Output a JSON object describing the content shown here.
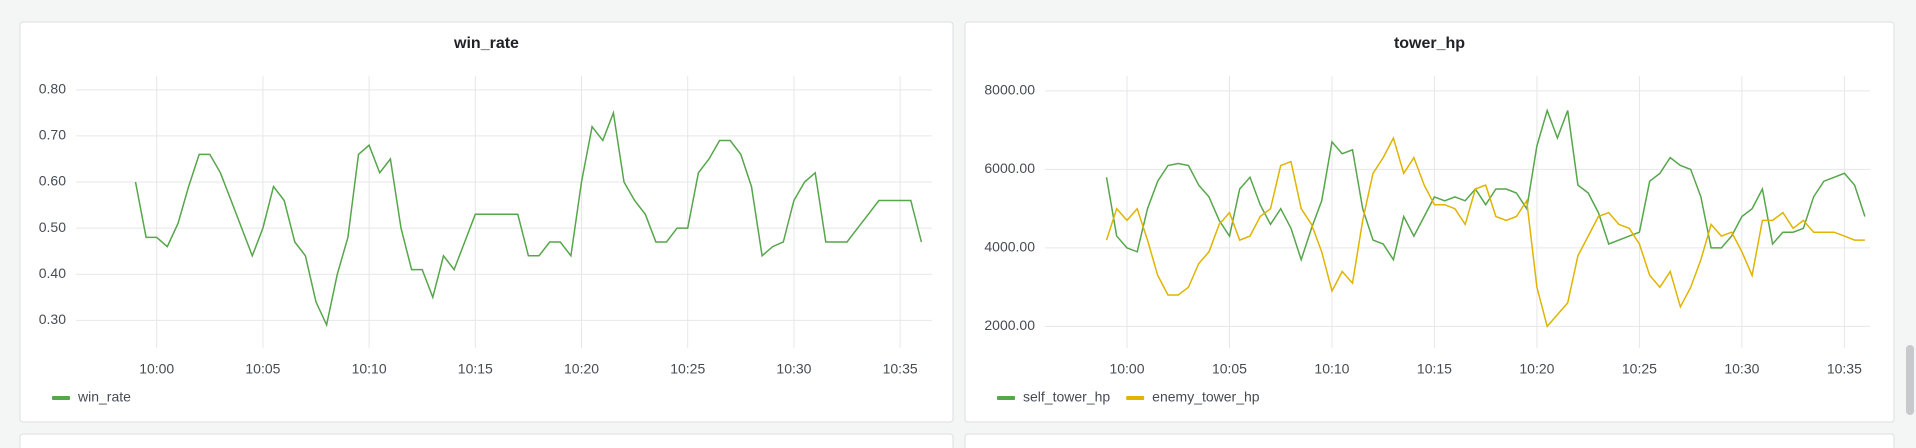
{
  "chart_data": [
    {
      "type": "line",
      "title": "win_rate",
      "x": [
        "09:59:00",
        "09:59:30",
        "10:00:00",
        "10:00:30",
        "10:01:00",
        "10:01:30",
        "10:02:00",
        "10:02:30",
        "10:03:00",
        "10:03:30",
        "10:04:00",
        "10:04:30",
        "10:05:00",
        "10:05:30",
        "10:06:00",
        "10:06:30",
        "10:07:00",
        "10:07:30",
        "10:08:00",
        "10:08:30",
        "10:09:00",
        "10:09:30",
        "10:10:00",
        "10:10:30",
        "10:11:00",
        "10:11:30",
        "10:12:00",
        "10:12:30",
        "10:13:00",
        "10:13:30",
        "10:14:00",
        "10:14:30",
        "10:15:00",
        "10:15:30",
        "10:16:00",
        "10:16:30",
        "10:17:00",
        "10:17:30",
        "10:18:00",
        "10:18:30",
        "10:19:00",
        "10:19:30",
        "10:20:00",
        "10:20:30",
        "10:21:00",
        "10:21:30",
        "10:22:00",
        "10:22:30",
        "10:23:00",
        "10:23:30",
        "10:24:00",
        "10:24:30",
        "10:25:00",
        "10:25:30",
        "10:26:00",
        "10:26:30",
        "10:27:00",
        "10:27:30",
        "10:28:00",
        "10:28:30",
        "10:29:00",
        "10:29:30",
        "10:30:00",
        "10:30:30",
        "10:31:00",
        "10:31:30",
        "10:32:00",
        "10:32:30",
        "10:33:00",
        "10:33:30",
        "10:34:00",
        "10:34:30",
        "10:35:00",
        "10:35:30",
        "10:36:00"
      ],
      "series": [
        {
          "name": "win_rate",
          "color": "#56a64b",
          "values": [
            0.6,
            0.48,
            0.48,
            0.46,
            0.51,
            0.59,
            0.66,
            0.66,
            0.62,
            0.56,
            0.5,
            0.44,
            0.5,
            0.59,
            0.56,
            0.47,
            0.44,
            0.34,
            0.29,
            0.4,
            0.48,
            0.66,
            0.68,
            0.62,
            0.65,
            0.5,
            0.41,
            0.41,
            0.35,
            0.44,
            0.41,
            0.47,
            0.53,
            0.53,
            0.53,
            0.53,
            0.53,
            0.44,
            0.44,
            0.47,
            0.47,
            0.44,
            0.6,
            0.72,
            0.69,
            0.75,
            0.6,
            0.56,
            0.53,
            0.47,
            0.47,
            0.5,
            0.5,
            0.62,
            0.65,
            0.69,
            0.69,
            0.66,
            0.59,
            0.44,
            0.46,
            0.47,
            0.56,
            0.6,
            0.62,
            0.47,
            0.47,
            0.47,
            0.5,
            0.53,
            0.56,
            0.56,
            0.56,
            0.56,
            0.47
          ]
        }
      ],
      "xlim": [
        "09:56:12",
        "10:36:30"
      ],
      "xticks": [
        "10:00",
        "10:05",
        "10:10",
        "10:15",
        "10:20",
        "10:25",
        "10:30",
        "10:35"
      ],
      "ylim": [
        0.24,
        0.83
      ],
      "yticks": [
        {
          "value": 0.3,
          "label": "0.30"
        },
        {
          "value": 0.4,
          "label": "0.40"
        },
        {
          "value": 0.5,
          "label": "0.50"
        },
        {
          "value": 0.6,
          "label": "0.60"
        },
        {
          "value": 0.7,
          "label": "0.70"
        },
        {
          "value": 0.8,
          "label": "0.80"
        }
      ],
      "grid": true,
      "legend": "bottom-left"
    },
    {
      "type": "line",
      "title": "tower_hp",
      "x": [
        "09:59:00",
        "09:59:30",
        "10:00:00",
        "10:00:30",
        "10:01:00",
        "10:01:30",
        "10:02:00",
        "10:02:30",
        "10:03:00",
        "10:03:30",
        "10:04:00",
        "10:04:30",
        "10:05:00",
        "10:05:30",
        "10:06:00",
        "10:06:30",
        "10:07:00",
        "10:07:30",
        "10:08:00",
        "10:08:30",
        "10:09:00",
        "10:09:30",
        "10:10:00",
        "10:10:30",
        "10:11:00",
        "10:11:30",
        "10:12:00",
        "10:12:30",
        "10:13:00",
        "10:13:30",
        "10:14:00",
        "10:14:30",
        "10:15:00",
        "10:15:30",
        "10:16:00",
        "10:16:30",
        "10:17:00",
        "10:17:30",
        "10:18:00",
        "10:18:30",
        "10:19:00",
        "10:19:30",
        "10:20:00",
        "10:20:30",
        "10:21:00",
        "10:21:30",
        "10:22:00",
        "10:22:30",
        "10:23:00",
        "10:23:30",
        "10:24:00",
        "10:24:30",
        "10:25:00",
        "10:25:30",
        "10:26:00",
        "10:26:30",
        "10:27:00",
        "10:27:30",
        "10:28:00",
        "10:28:30",
        "10:29:00",
        "10:29:30",
        "10:30:00",
        "10:30:30",
        "10:31:00",
        "10:31:30",
        "10:32:00",
        "10:32:30",
        "10:33:00",
        "10:33:30",
        "10:34:00",
        "10:34:30",
        "10:35:00",
        "10:35:30",
        "10:36:00"
      ],
      "series": [
        {
          "name": "self_tower_hp",
          "color": "#56a64b",
          "values": [
            5800,
            4300,
            4000,
            3900,
            5000,
            5700,
            6100,
            6150,
            6100,
            5600,
            5300,
            4700,
            4300,
            5500,
            5800,
            5100,
            4600,
            5000,
            4500,
            3700,
            4500,
            5200,
            6700,
            6400,
            6500,
            5000,
            4200,
            4100,
            3700,
            4800,
            4300,
            4800,
            5300,
            5200,
            5300,
            5200,
            5500,
            5100,
            5500,
            5500,
            5400,
            5000,
            6600,
            7500,
            6800,
            7500,
            5600,
            5400,
            4900,
            4100,
            4200,
            4300,
            4400,
            5700,
            5900,
            6300,
            6100,
            6000,
            5300,
            4000,
            4000,
            4300,
            4800,
            5000,
            5500,
            4100,
            4400,
            4400,
            4500,
            5300,
            5700,
            5800,
            5900,
            5600,
            4800
          ]
        },
        {
          "name": "enemy_tower_hp",
          "color": "#e0b400",
          "values": [
            4200,
            5000,
            4700,
            5000,
            4200,
            3300,
            2800,
            2800,
            3000,
            3600,
            3900,
            4600,
            4900,
            4200,
            4300,
            4800,
            5000,
            6100,
            6200,
            5000,
            4600,
            3900,
            2900,
            3400,
            3100,
            4700,
            5900,
            6300,
            6800,
            5900,
            6300,
            5600,
            5100,
            5100,
            5000,
            4600,
            5500,
            5600,
            4800,
            4700,
            4800,
            5200,
            3000,
            2000,
            2300,
            2600,
            3800,
            4300,
            4800,
            4900,
            4600,
            4500,
            4100,
            3300,
            3000,
            3400,
            2500,
            3000,
            3700,
            4600,
            4300,
            4400,
            3900,
            3300,
            4700,
            4700,
            4900,
            4500,
            4700,
            4400,
            4400,
            4400,
            4300,
            4200,
            4200
          ]
        }
      ],
      "xlim": [
        "09:56:00",
        "10:36:15"
      ],
      "xticks": [
        "10:00",
        "10:05",
        "10:10",
        "10:15",
        "10:20",
        "10:25",
        "10:30",
        "10:35"
      ],
      "ylim": [
        1450,
        8380
      ],
      "yticks": [
        {
          "value": 2000,
          "label": "2000.00"
        },
        {
          "value": 4000,
          "label": "4000.00"
        },
        {
          "value": 6000,
          "label": "6000.00"
        },
        {
          "value": 8000,
          "label": "8000.00"
        }
      ],
      "grid": true,
      "legend": "bottom-left"
    }
  ]
}
